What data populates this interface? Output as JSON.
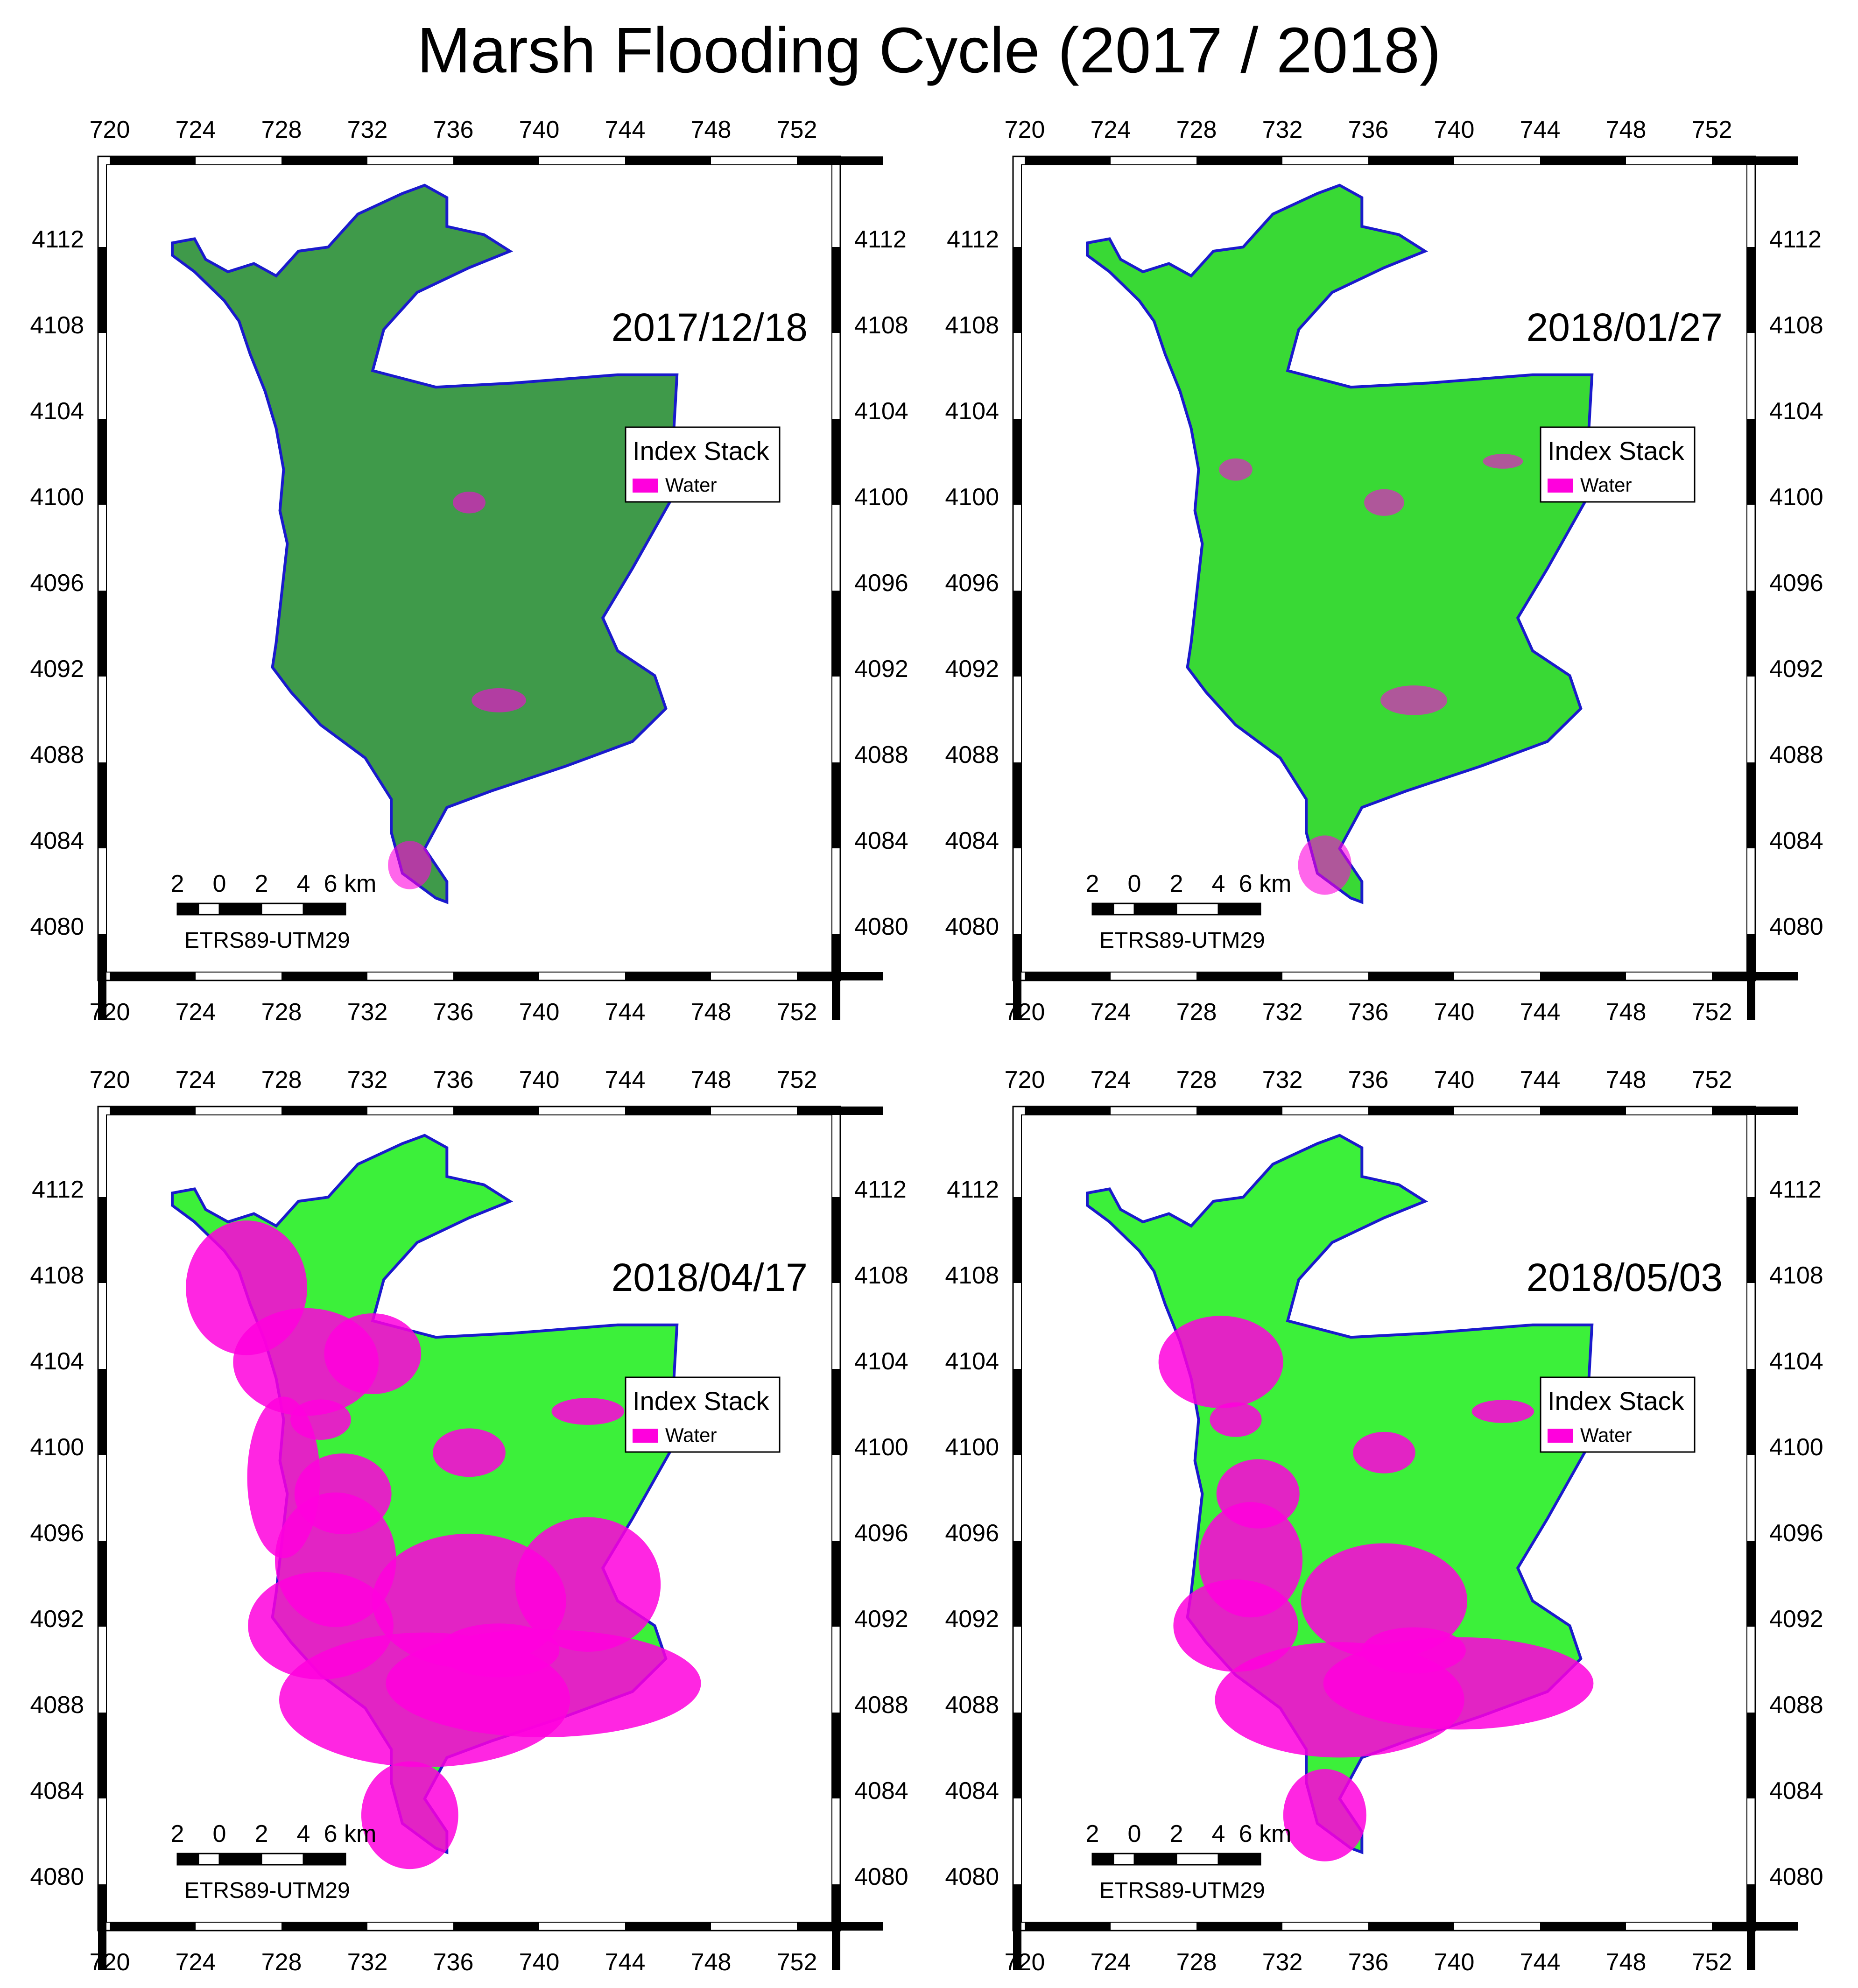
{
  "figure": {
    "title": "Marsh Flooding Cycle (2017 / 2018)",
    "x_ticks": [
      "720",
      "724",
      "728",
      "732",
      "736",
      "740",
      "744",
      "748",
      "752"
    ],
    "y_ticks": [
      "4112",
      "4108",
      "4104",
      "4100",
      "4096",
      "4092",
      "4088",
      "4084",
      "4080"
    ],
    "legend": {
      "title": "Index Stack",
      "item": "Water",
      "water_color": "#ff00dd"
    },
    "scalebar": {
      "labels": [
        "2",
        "0",
        "2",
        "4",
        "6 km"
      ],
      "crs": "ETRS89-UTM29"
    },
    "colors": {
      "outline": "#1a1acc",
      "water": "#ff00dd",
      "vegetation_dark": "#3f9a4a",
      "vegetation_bright": "#22ff22"
    }
  },
  "panels": [
    {
      "date": "2017/12/18",
      "wet_pct": 8,
      "base_color": "#3f9a4a"
    },
    {
      "date": "2018/01/27",
      "wet_pct": 18,
      "base_color": "#39d935"
    },
    {
      "date": "2018/04/17",
      "wet_pct": 62,
      "base_color": "#3cf03a"
    },
    {
      "date": "2018/05/03",
      "wet_pct": 48,
      "base_color": "#3cf03a"
    }
  ]
}
